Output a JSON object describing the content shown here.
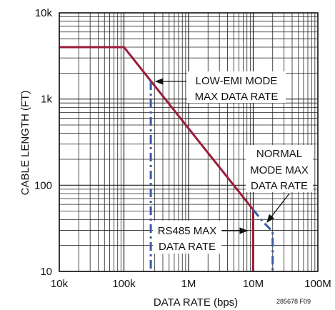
{
  "chart_data": {
    "type": "line",
    "xlabel": "DATA RATE (bps)",
    "ylabel": "CABLE LENGTH (FT)",
    "x_scale": "log",
    "y_scale": "log",
    "xlim": [
      10000,
      100000000
    ],
    "ylim": [
      10,
      10000
    ],
    "x_tick_labels": [
      "10k",
      "100k",
      "1M",
      "10M",
      "100M"
    ],
    "y_tick_labels": [
      "10",
      "100",
      "1k",
      "10k"
    ],
    "grid": true,
    "figure_id": "285678 F09",
    "series": [
      {
        "role": "RS485 max data rate",
        "color": "#9b1b3a",
        "style": "solid",
        "points": [
          [
            10000,
            4000
          ],
          [
            100000,
            4000
          ],
          [
            10000000,
            52
          ],
          [
            10000000,
            10
          ]
        ]
      },
      {
        "role": "normal mode max data rate",
        "color": "#3b5aa8",
        "style": "dashed",
        "points": [
          [
            10000000,
            52
          ],
          [
            14000000,
            38
          ],
          [
            20000000,
            29
          ],
          [
            20000000,
            10
          ]
        ]
      },
      {
        "role": "low-EMI mode max data rate",
        "color": "#3b5aa8",
        "style": "dashed",
        "points": [
          [
            260000,
            1600
          ],
          [
            260000,
            10
          ]
        ]
      }
    ],
    "annotations": [
      {
        "lines": [
          "LOW-EMI MODE",
          "MAX DATA RATE"
        ],
        "target": [
          260000,
          1600
        ]
      },
      {
        "lines": [
          "NORMAL",
          "MODE MAX",
          "DATA RATE"
        ],
        "target": [
          14000000,
          38
        ]
      },
      {
        "lines": [
          "RS485 MAX",
          "DATA RATE"
        ],
        "target": [
          10000000,
          30
        ]
      }
    ]
  }
}
